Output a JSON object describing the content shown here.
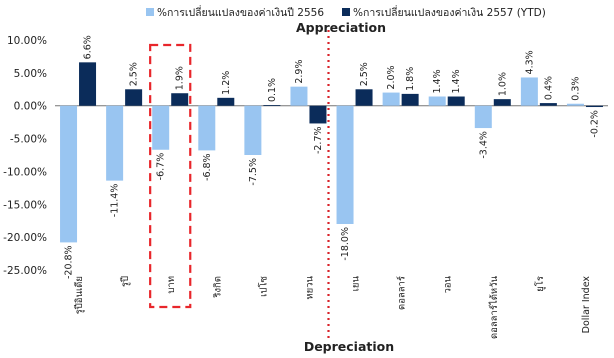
{
  "chart_data": {
    "type": "bar",
    "categories": [
      "รูปีอินเดีย",
      "รูปี",
      "บาท",
      "ริงกิต",
      "เปโซ",
      "หยวน",
      "เยน",
      "ดอลลาร์",
      "วอน",
      "ดอลลาร์ไต้หวัน",
      "ยูโร",
      "Dollar Index"
    ],
    "series": [
      {
        "name": "%การเปลี่ยนแปลงของค่าเงินปี 2556",
        "color": "#99c5f1",
        "values": [
          -20.8,
          -11.4,
          -6.7,
          -6.8,
          -7.5,
          2.9,
          -18.0,
          2.0,
          1.4,
          -3.4,
          4.3,
          0.3
        ]
      },
      {
        "name": "%การเปลี่ยนแปลงของค่าเงิน 2557 (YTD)",
        "color": "#0b2c5a",
        "values": [
          6.6,
          2.5,
          1.9,
          1.2,
          0.1,
          -2.7,
          2.5,
          1.8,
          1.4,
          1.0,
          0.4,
          -0.2
        ]
      }
    ],
    "data_labels": [
      [
        "-20.8%",
        "-11.4%",
        "-6.7%",
        "-6.8%",
        "-7.5%",
        "2.9%",
        "-18.0%",
        "2.0%",
        "1.4%",
        "-3.4%",
        "4.3%",
        "0.3%"
      ],
      [
        "6.6%",
        "2.5%",
        "1.9%",
        "1.2%",
        "0.1%",
        "-2.7%",
        "2.5%",
        "1.8%",
        "1.4%",
        "1.0%",
        "0.4%",
        "-0.2%"
      ]
    ],
    "y_ticks": [
      "10.00%",
      "5.00%",
      "0.00%",
      "-5.00%",
      "-10.00%",
      "-15.00%",
      "-20.00%",
      "-25.00%"
    ],
    "ylim": [
      -25,
      10
    ],
    "legend_position": "top",
    "annotations": {
      "top": "Appreciation",
      "bottom": "Depreciation"
    },
    "highlight_category": "บาท",
    "highlight_color": "#e8262b",
    "divider_color": "#d9232a"
  }
}
